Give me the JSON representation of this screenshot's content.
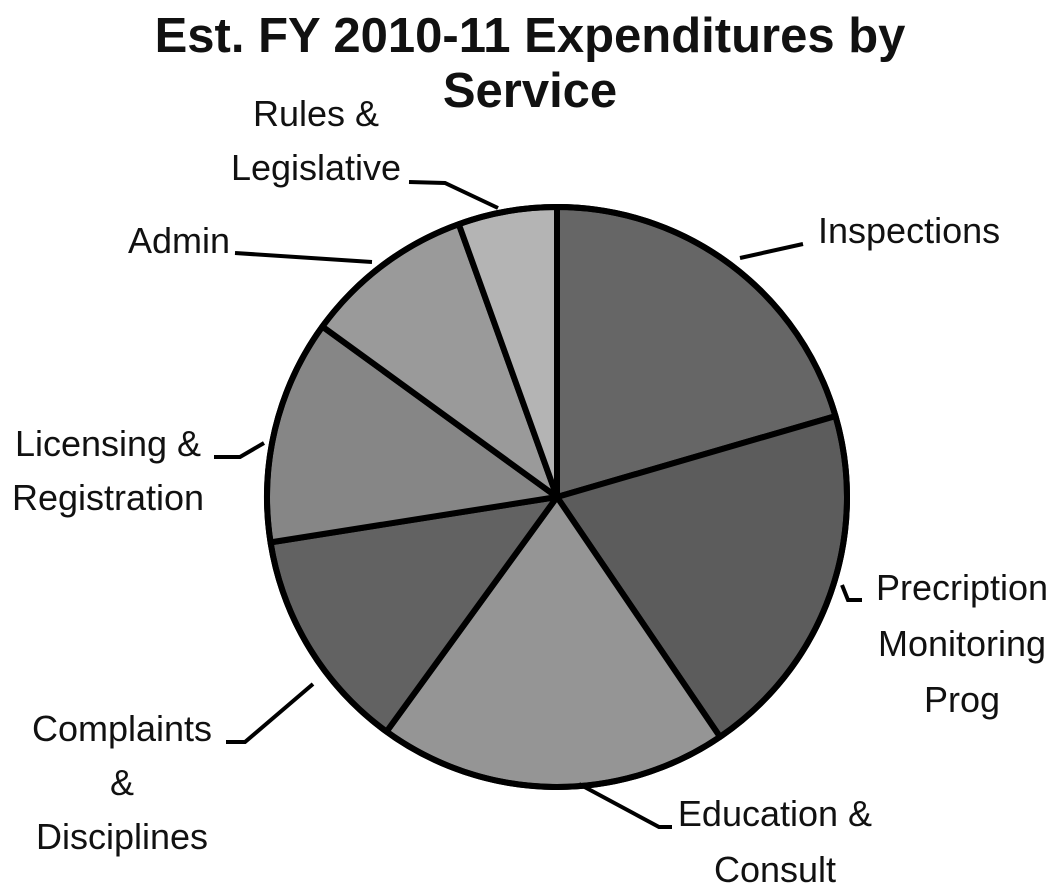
{
  "chart_data": {
    "type": "pie",
    "title": "Est. FY 2010-11 Expenditures by Service",
    "title_lines": [
      "Est. FY 2010-11 Expenditures by",
      "Service"
    ],
    "start_angle_deg": 0,
    "direction": "clockwise",
    "slices": [
      {
        "label": "Inspections",
        "label_lines": [
          "Inspections"
        ],
        "value": 20.5,
        "color": "#666666",
        "label_side": "right"
      },
      {
        "label": "Precription Monitoring Prog",
        "label_lines": [
          "Precription",
          "Monitoring",
          "Prog"
        ],
        "value": 20.0,
        "color": "#5c5c5c",
        "label_side": "right"
      },
      {
        "label": "Education & Consult",
        "label_lines": [
          "Education &",
          "Consult"
        ],
        "value": 19.5,
        "color": "#959595",
        "label_side": "right"
      },
      {
        "label": "Complaints & Disciplines",
        "label_lines": [
          "Complaints",
          "&",
          "Disciplines"
        ],
        "value": 12.5,
        "color": "#626262",
        "label_side": "left"
      },
      {
        "label": "Licensing & Registration",
        "label_lines": [
          "Licensing &",
          "Registration"
        ],
        "value": 12.5,
        "color": "#868686",
        "label_side": "left"
      },
      {
        "label": "Admin",
        "label_lines": [
          "Admin"
        ],
        "value": 9.5,
        "color": "#9a9a9a",
        "label_side": "left"
      },
      {
        "label": "Rules & Legislative",
        "label_lines": [
          "Rules &",
          "Legislative"
        ],
        "value": 5.5,
        "color": "#b4b4b4",
        "label_side": "left"
      }
    ],
    "legend": false,
    "grid": false
  }
}
